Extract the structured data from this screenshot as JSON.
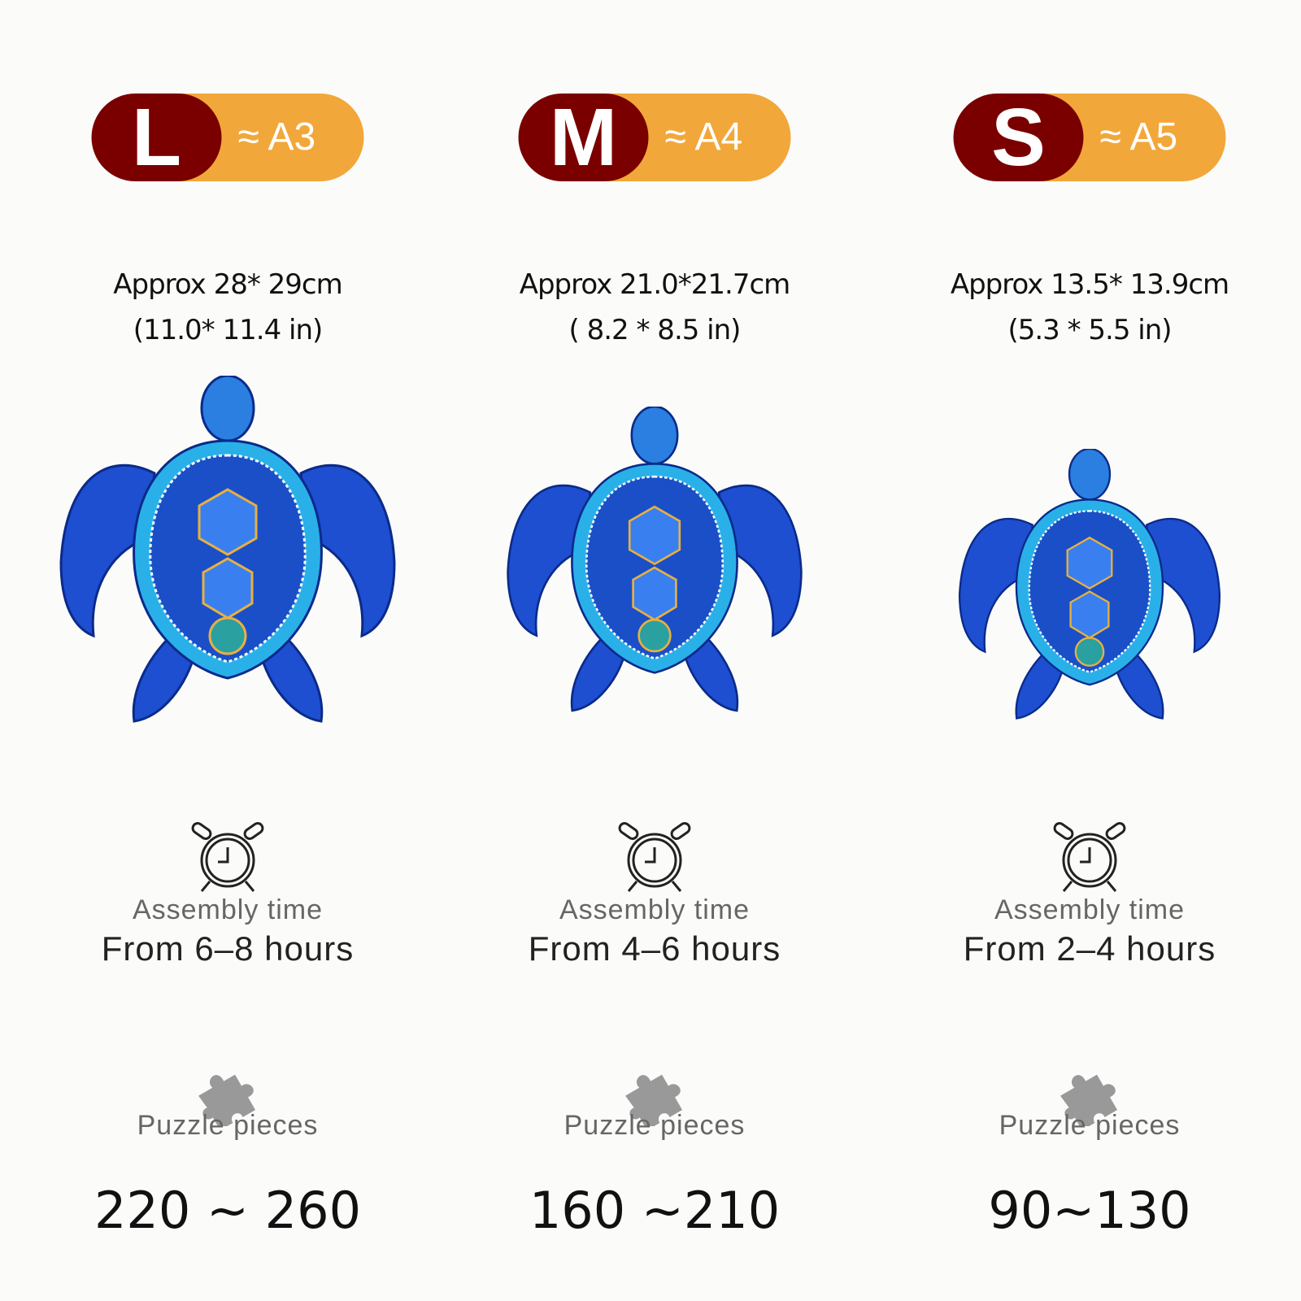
{
  "colors": {
    "size_badge": "#7a0000",
    "paper_badge": "#f2a73a",
    "turtle": "#1d4fd0"
  },
  "sizes": [
    {
      "letter": "L",
      "paper": "≈ A3",
      "dims_cm": "Approx 28* 29cm",
      "dims_in": "(11.0* 11.4 in)",
      "time_label": "Assembly time",
      "time": "From 6–8 hours",
      "pieces_label": "Puzzle pieces",
      "pieces": "220 ~ 260"
    },
    {
      "letter": "M",
      "paper": "≈ A4",
      "dims_cm": "Approx 21.0*21.7cm",
      "dims_in": "( 8.2 * 8.5 in)",
      "time_label": "Assembly time",
      "time": "From 4–6 hours",
      "pieces_label": "Puzzle pieces",
      "pieces": "160 ~210"
    },
    {
      "letter": "S",
      "paper": "≈ A5",
      "dims_cm": "Approx 13.5* 13.9cm",
      "dims_in": "(5.3 * 5.5 in)",
      "time_label": "Assembly time",
      "time": "From 2–4 hours",
      "pieces_label": "Puzzle pieces",
      "pieces": "90~130"
    }
  ]
}
